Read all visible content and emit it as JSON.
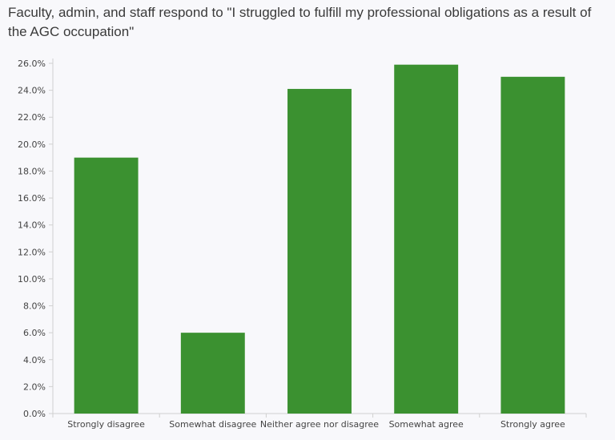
{
  "chart_data": {
    "type": "bar",
    "title": "Faculty, admin, and staff respond to \"I struggled to fulfill my professional obligations as a result of the AGC occupation\"",
    "xlabel": "",
    "ylabel": "",
    "categories": [
      "Strongly disagree",
      "Somewhat disagree",
      "Neither agree nor disagree",
      "Somewhat agree",
      "Strongly agree"
    ],
    "values": [
      19.0,
      6.0,
      24.1,
      25.9,
      25.0
    ],
    "ylim": [
      0,
      26
    ],
    "yticks": [
      "0.0%",
      "2.0%",
      "4.0%",
      "6.0%",
      "8.0%",
      "10.0%",
      "12.0%",
      "14.0%",
      "16.0%",
      "18.0%",
      "20.0%",
      "22.0%",
      "24.0%",
      "26.0%"
    ],
    "grid": false,
    "legend": "none",
    "bar_color": "#3b9130",
    "axis_color": "#d0d0d0"
  }
}
